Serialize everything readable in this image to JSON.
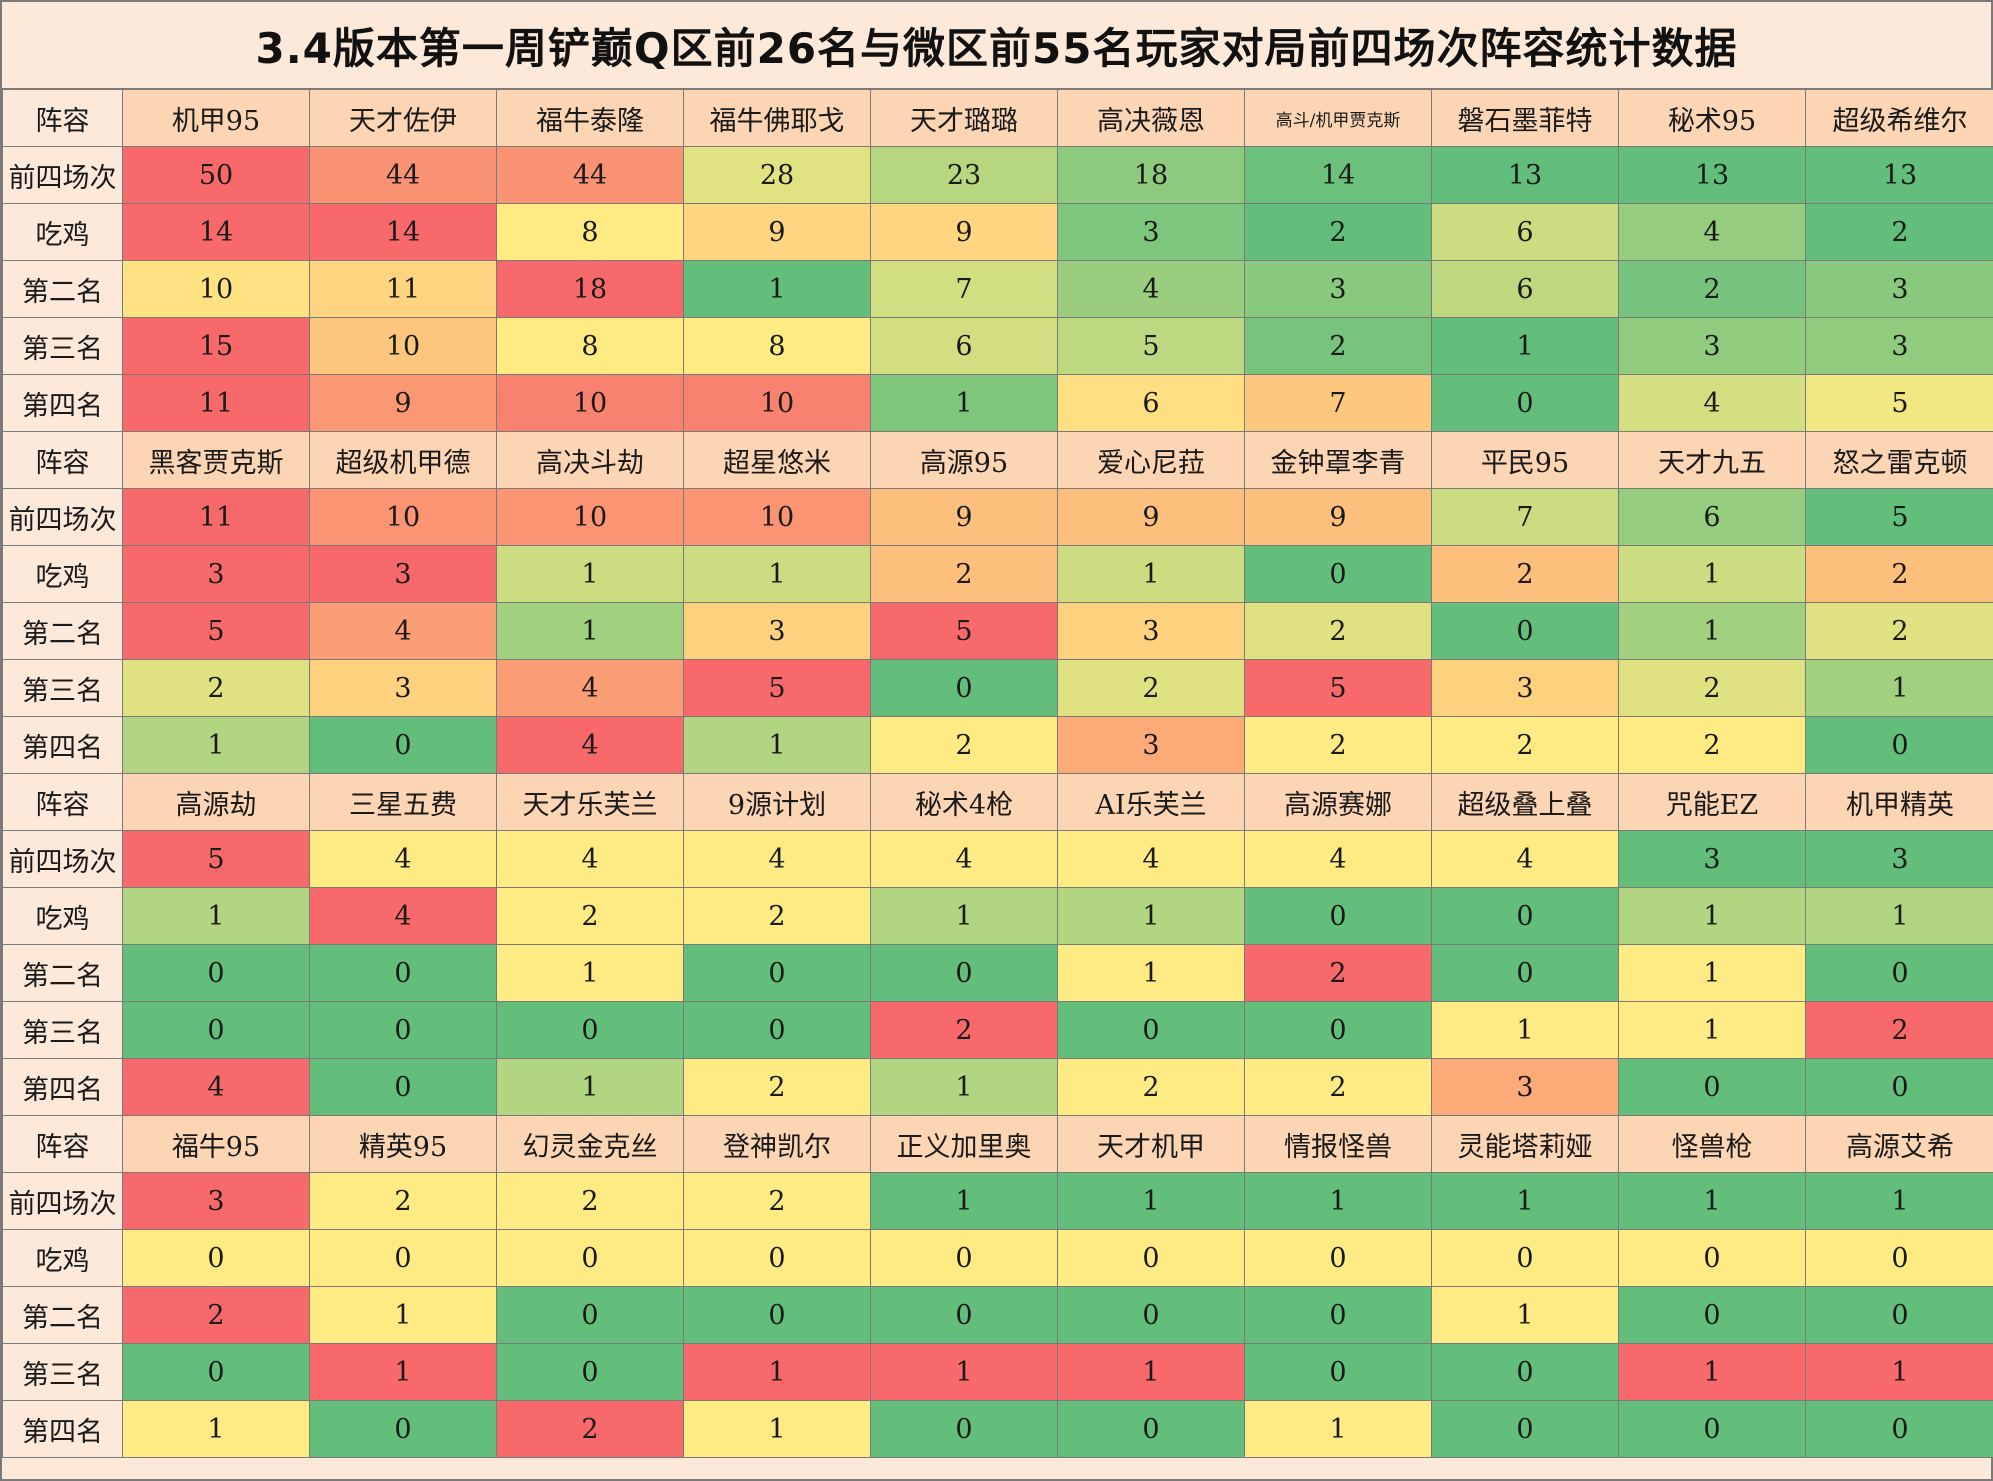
{
  "title": "3.4版本第一周铲巅Q区前26名与微区前55名玩家对局前四场次阵容统计数据",
  "row_labels": [
    "阵容",
    "前四场次",
    "吃鸡",
    "第二名",
    "第三名",
    "第四名"
  ],
  "colors": {
    "header_bg": "#fcd5b5",
    "row_label_bg": "#fde9d9",
    "scale_low": "#63be7b",
    "scale_mid": "#ffeb84",
    "scale_high": "#f8696b"
  },
  "chart_data": {
    "type": "table",
    "color_scale": "green-yellow-red",
    "metrics": [
      "前四场次",
      "吃鸡",
      "第二名",
      "第三名",
      "第四名"
    ],
    "blocks": [
      {
        "lineups": [
          "机甲95",
          "天才佐伊",
          "福牛泰隆",
          "福牛佛耶戈",
          "天才璐璐",
          "高决薇恩",
          "高斗/机甲贾克斯",
          "磐石墨菲特",
          "秘术95",
          "超级希维尔"
        ],
        "rows": [
          [
            50,
            44,
            44,
            28,
            23,
            18,
            14,
            13,
            13,
            13
          ],
          [
            14,
            14,
            8,
            9,
            9,
            3,
            2,
            6,
            4,
            2
          ],
          [
            10,
            11,
            18,
            1,
            7,
            4,
            3,
            6,
            2,
            3
          ],
          [
            15,
            10,
            8,
            8,
            6,
            5,
            2,
            1,
            3,
            3
          ],
          [
            11,
            9,
            10,
            10,
            1,
            6,
            7,
            0,
            4,
            5
          ]
        ]
      },
      {
        "lineups": [
          "黑客贾克斯",
          "超级机甲德",
          "高决斗劫",
          "超星悠米",
          "高源95",
          "爱心尼菈",
          "金钟罩李青",
          "平民95",
          "天才九五",
          "怒之雷克顿"
        ],
        "rows": [
          [
            11,
            10,
            10,
            10,
            9,
            9,
            9,
            7,
            6,
            5
          ],
          [
            3,
            3,
            1,
            1,
            2,
            1,
            0,
            2,
            1,
            2
          ],
          [
            5,
            4,
            1,
            3,
            5,
            3,
            2,
            0,
            1,
            2
          ],
          [
            2,
            3,
            4,
            5,
            0,
            2,
            5,
            3,
            2,
            1
          ],
          [
            1,
            0,
            4,
            1,
            2,
            3,
            2,
            2,
            2,
            0
          ]
        ]
      },
      {
        "lineups": [
          "高源劫",
          "三星五费",
          "天才乐芙兰",
          "9源计划",
          "秘术4枪",
          "AI乐芙兰",
          "高源赛娜",
          "超级叠上叠",
          "咒能EZ",
          "机甲精英"
        ],
        "rows": [
          [
            5,
            4,
            4,
            4,
            4,
            4,
            4,
            4,
            3,
            3
          ],
          [
            1,
            4,
            2,
            2,
            1,
            1,
            0,
            0,
            1,
            1
          ],
          [
            0,
            0,
            1,
            0,
            0,
            1,
            2,
            0,
            1,
            0
          ],
          [
            0,
            0,
            0,
            0,
            2,
            0,
            0,
            1,
            1,
            2
          ],
          [
            4,
            0,
            1,
            2,
            1,
            2,
            2,
            3,
            0,
            0
          ]
        ]
      },
      {
        "lineups": [
          "福牛95",
          "精英95",
          "幻灵金克丝",
          "登神凯尔",
          "正义加里奥",
          "天才机甲",
          "情报怪兽",
          "灵能塔莉娅",
          "怪兽枪",
          "高源艾希"
        ],
        "rows": [
          [
            3,
            2,
            2,
            2,
            1,
            1,
            1,
            1,
            1,
            1
          ],
          [
            0,
            0,
            0,
            0,
            0,
            0,
            0,
            0,
            0,
            0
          ],
          [
            2,
            1,
            0,
            0,
            0,
            0,
            0,
            1,
            0,
            0
          ],
          [
            0,
            1,
            0,
            1,
            1,
            1,
            0,
            0,
            1,
            1
          ],
          [
            1,
            0,
            2,
            1,
            0,
            0,
            1,
            0,
            0,
            0
          ]
        ]
      }
    ]
  }
}
